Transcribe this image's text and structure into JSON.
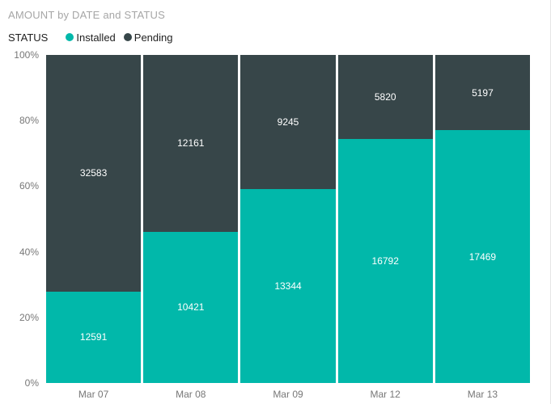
{
  "title": "AMOUNT by DATE and STATUS",
  "legend": {
    "label": "STATUS",
    "items": [
      {
        "label": "Installed",
        "color": "#01b8aa"
      },
      {
        "label": "Pending",
        "color": "#374649"
      }
    ]
  },
  "y_axis_ticks": [
    "0%",
    "20%",
    "40%",
    "60%",
    "80%",
    "100%"
  ],
  "colors": {
    "installed": "#01b8aa",
    "pending": "#374649",
    "title_text": "#a6a6a6",
    "axis_text": "#777777",
    "legend_text": "#212121",
    "data_label_text": "#ffffff",
    "background": "#ffffff",
    "border": "#e6e6e6"
  },
  "chart_data": {
    "type": "bar",
    "variant": "100%-stacked-column",
    "title": "AMOUNT by DATE and STATUS",
    "categories": [
      "Mar 07",
      "Mar 08",
      "Mar 09",
      "Mar 12",
      "Mar 13"
    ],
    "series": [
      {
        "name": "Installed",
        "color": "#01b8aa",
        "values": [
          12591,
          10421,
          13344,
          16792,
          17469
        ]
      },
      {
        "name": "Pending",
        "color": "#374649",
        "values": [
          32583,
          12161,
          9245,
          5820,
          5197
        ]
      }
    ],
    "stack_order_top_to_bottom": [
      "Pending",
      "Installed"
    ],
    "installed_percent_of_total": [
      27.9,
      46.1,
      59.1,
      74.3,
      77.1
    ],
    "xlabel": "",
    "ylabel": "",
    "ylim_percent": [
      0,
      100
    ],
    "y_tick_percent": [
      0,
      20,
      40,
      60,
      80,
      100
    ],
    "grid": false,
    "legend_position": "top-left",
    "data_labels": "inside-center-white"
  }
}
